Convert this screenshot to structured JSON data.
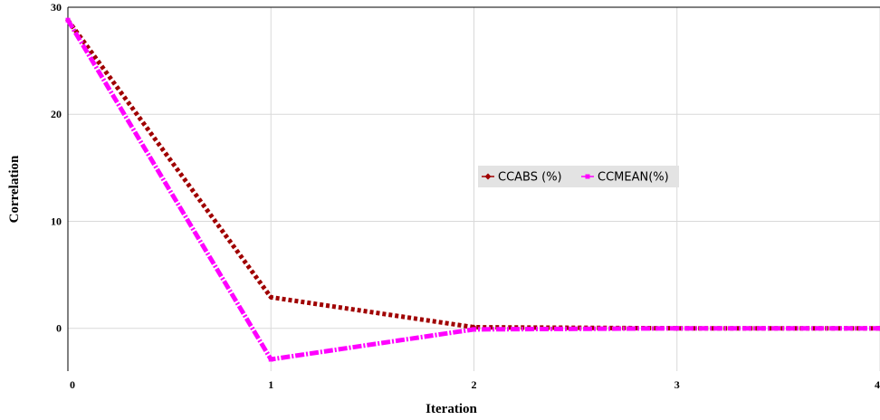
{
  "chart_data": {
    "type": "line",
    "title": "",
    "xlabel": "Iteration",
    "ylabel": "Correlation",
    "x": [
      0,
      1,
      2,
      3,
      4
    ],
    "x_ticks": [
      "0",
      "1",
      "2",
      "3",
      "4"
    ],
    "y_ticks": [
      "0",
      "10",
      "20",
      "30"
    ],
    "xlim": [
      0,
      4
    ],
    "ylim": [
      -4,
      30
    ],
    "grid": true,
    "legend_position": "center-right",
    "series": [
      {
        "name": "CCABS (%)",
        "values": [
          28.8,
          2.9,
          0.1,
          0.0,
          0.0
        ],
        "color": "#a00000",
        "marker": "diamond",
        "line_style": "dotted"
      },
      {
        "name": "CCMEAN(%)",
        "values": [
          28.8,
          -2.9,
          -0.1,
          0.0,
          0.0
        ],
        "color": "#ff00ff",
        "marker": "square",
        "line_style": "dash-dot"
      }
    ]
  }
}
